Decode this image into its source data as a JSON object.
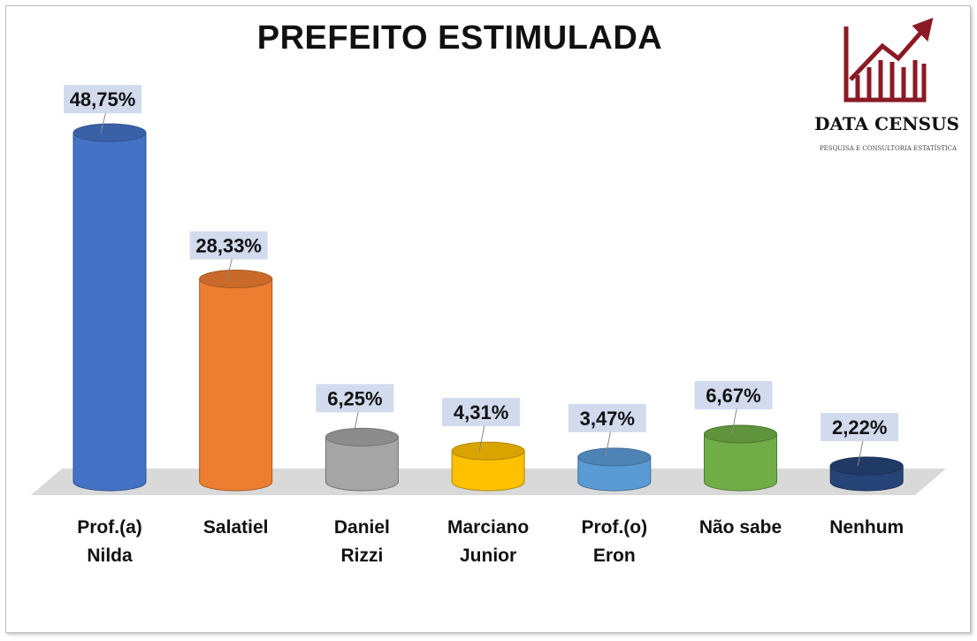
{
  "chart_data": {
    "type": "bar",
    "title": "PREFEITO ESTIMULADA",
    "categories": [
      [
        "Prof.(a)",
        "Nilda"
      ],
      [
        "Salatiel"
      ],
      [
        "Daniel",
        "Rizzi"
      ],
      [
        "Marciano",
        "Junior"
      ],
      [
        "Prof.(o)",
        "Eron"
      ],
      [
        "Não sabe"
      ],
      [
        "Nenhum"
      ]
    ],
    "values": [
      48.75,
      28.33,
      6.25,
      4.31,
      3.47,
      6.67,
      2.22
    ],
    "data_labels": [
      "48,75%",
      "28,33%",
      "6,25%",
      "4,31%",
      "3,47%",
      "6,67%",
      "2,22%"
    ],
    "colors": [
      "#4472c4",
      "#ed7d31",
      "#a5a5a5",
      "#ffc000",
      "#5b9bd5",
      "#70ad47",
      "#264478"
    ],
    "xlabel": "",
    "ylabel": "",
    "ylim": [
      0,
      50
    ],
    "grid": false,
    "legend": "none"
  },
  "logo": {
    "name": "DATA CENSUS",
    "tagline": "PESQUISA E CONSULTORIA ESTATÍSTICA",
    "color": "#8b1a24"
  }
}
